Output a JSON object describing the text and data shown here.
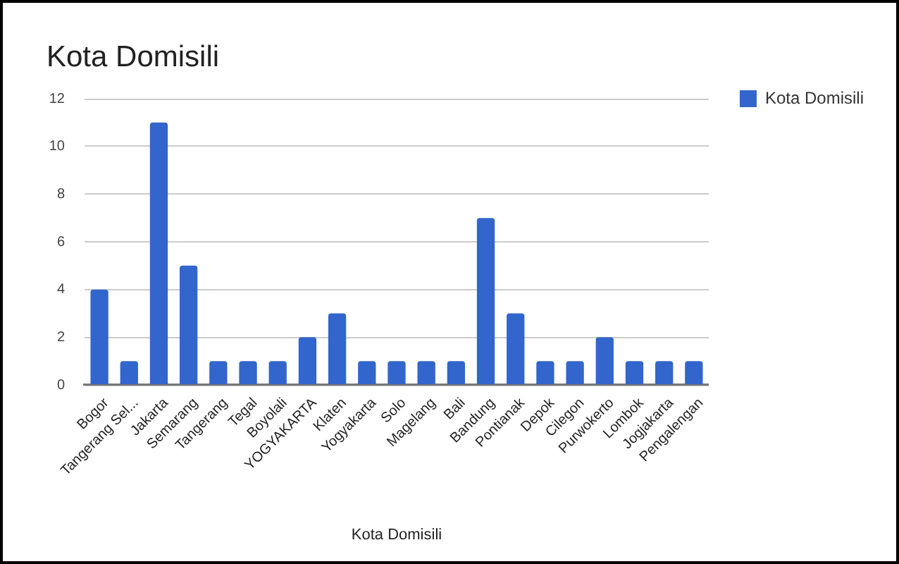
{
  "chart_data": {
    "type": "bar",
    "title": "Kota Domisili",
    "xlabel": "Kota Domisili",
    "categories": [
      "Bogor",
      "Tangerang Sel...",
      "Jakarta",
      "Semarang",
      "Tangerang",
      "Tegal",
      "Boyolali",
      "YOGYAKARTA",
      "Klaten",
      "Yogyakarta",
      "Solo",
      "Magelang",
      "Bali",
      "Bandung",
      "Pontianak",
      "Depok",
      "Cilegon",
      "Purwokerto",
      "Lombok",
      "Jogjakarta",
      "Pengalengan"
    ],
    "series": [
      {
        "name": "Kota Domisili",
        "color": "#3366cc",
        "values": [
          4,
          1,
          11,
          5,
          1,
          1,
          1,
          2,
          3,
          1,
          1,
          1,
          1,
          7,
          3,
          1,
          1,
          2,
          1,
          1,
          1
        ]
      }
    ],
    "ylim": [
      0,
      12
    ],
    "yticks": [
      0,
      2,
      4,
      6,
      8,
      10,
      12
    ],
    "grid": "y",
    "legend": "top right"
  }
}
